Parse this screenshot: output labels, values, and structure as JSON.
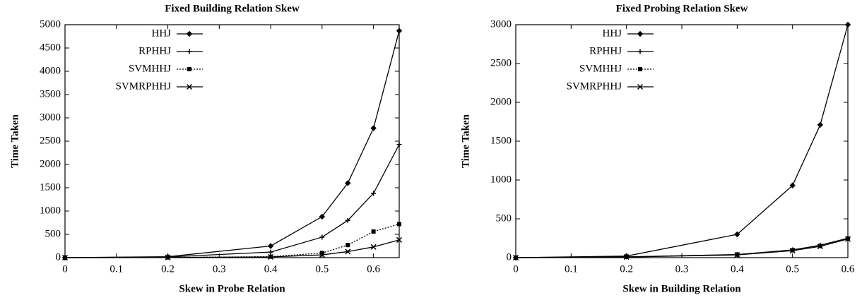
{
  "chart_data": [
    {
      "type": "line",
      "title": "Fixed Building Relation Skew",
      "x_label": "Skew in Probe Relation",
      "y_label": "Time Taken",
      "x": [
        0,
        0.2,
        0.4,
        0.5,
        0.55,
        0.6,
        0.65
      ],
      "series": [
        {
          "name": "HHJ",
          "color": "#000000",
          "marker": "diamond",
          "dash": "solid",
          "values": [
            0,
            20,
            250,
            880,
            1600,
            2780,
            4870
          ]
        },
        {
          "name": "RPHHJ",
          "color": "#000000",
          "marker": "plus",
          "dash": "solid",
          "values": [
            0,
            15,
            120,
            440,
            800,
            1380,
            2430
          ]
        },
        {
          "name": "SVMHHJ",
          "color": "#000000",
          "marker": "square",
          "dash": "dotted",
          "values": [
            0,
            5,
            20,
            100,
            270,
            560,
            720
          ]
        },
        {
          "name": "SVMRPHHJ",
          "color": "#000000",
          "marker": "cross",
          "dash": "solid",
          "values": [
            0,
            5,
            15,
            60,
            130,
            230,
            380
          ]
        }
      ],
      "xlim": [
        0,
        0.65
      ],
      "xticks": [
        0,
        0.1,
        0.2,
        0.3,
        0.4,
        0.5,
        0.6
      ],
      "ylim": [
        0,
        5000
      ],
      "yticks": [
        0,
        500,
        1000,
        1500,
        2000,
        2500,
        3000,
        3500,
        4000,
        4500,
        5000
      ],
      "grid": false,
      "legend": "upper left"
    },
    {
      "type": "line",
      "title": "Fixed Probing Relation Skew",
      "x_label": "Skew in Building Relation",
      "y_label": "Time Taken",
      "x": [
        0,
        0.2,
        0.4,
        0.5,
        0.55,
        0.6
      ],
      "series": [
        {
          "name": "HHJ",
          "color": "#000000",
          "marker": "diamond",
          "dash": "solid",
          "values": [
            0,
            20,
            300,
            930,
            1710,
            3000
          ]
        },
        {
          "name": "RPHHJ",
          "color": "#000000",
          "marker": "plus",
          "dash": "solid",
          "values": [
            0,
            10,
            40,
            100,
            160,
            250
          ]
        },
        {
          "name": "SVMHHJ",
          "color": "#000000",
          "marker": "square",
          "dash": "dotted",
          "values": [
            0,
            10,
            40,
            95,
            150,
            245
          ]
        },
        {
          "name": "SVMRPHHJ",
          "color": "#000000",
          "marker": "cross",
          "dash": "solid",
          "values": [
            0,
            8,
            35,
            90,
            145,
            240
          ]
        }
      ],
      "xlim": [
        0,
        0.6
      ],
      "xticks": [
        0,
        0.1,
        0.2,
        0.3,
        0.4,
        0.5,
        0.6
      ],
      "ylim": [
        0,
        3000
      ],
      "yticks": [
        0,
        500,
        1000,
        1500,
        2000,
        2500,
        3000
      ],
      "grid": false,
      "legend": "upper left"
    }
  ]
}
